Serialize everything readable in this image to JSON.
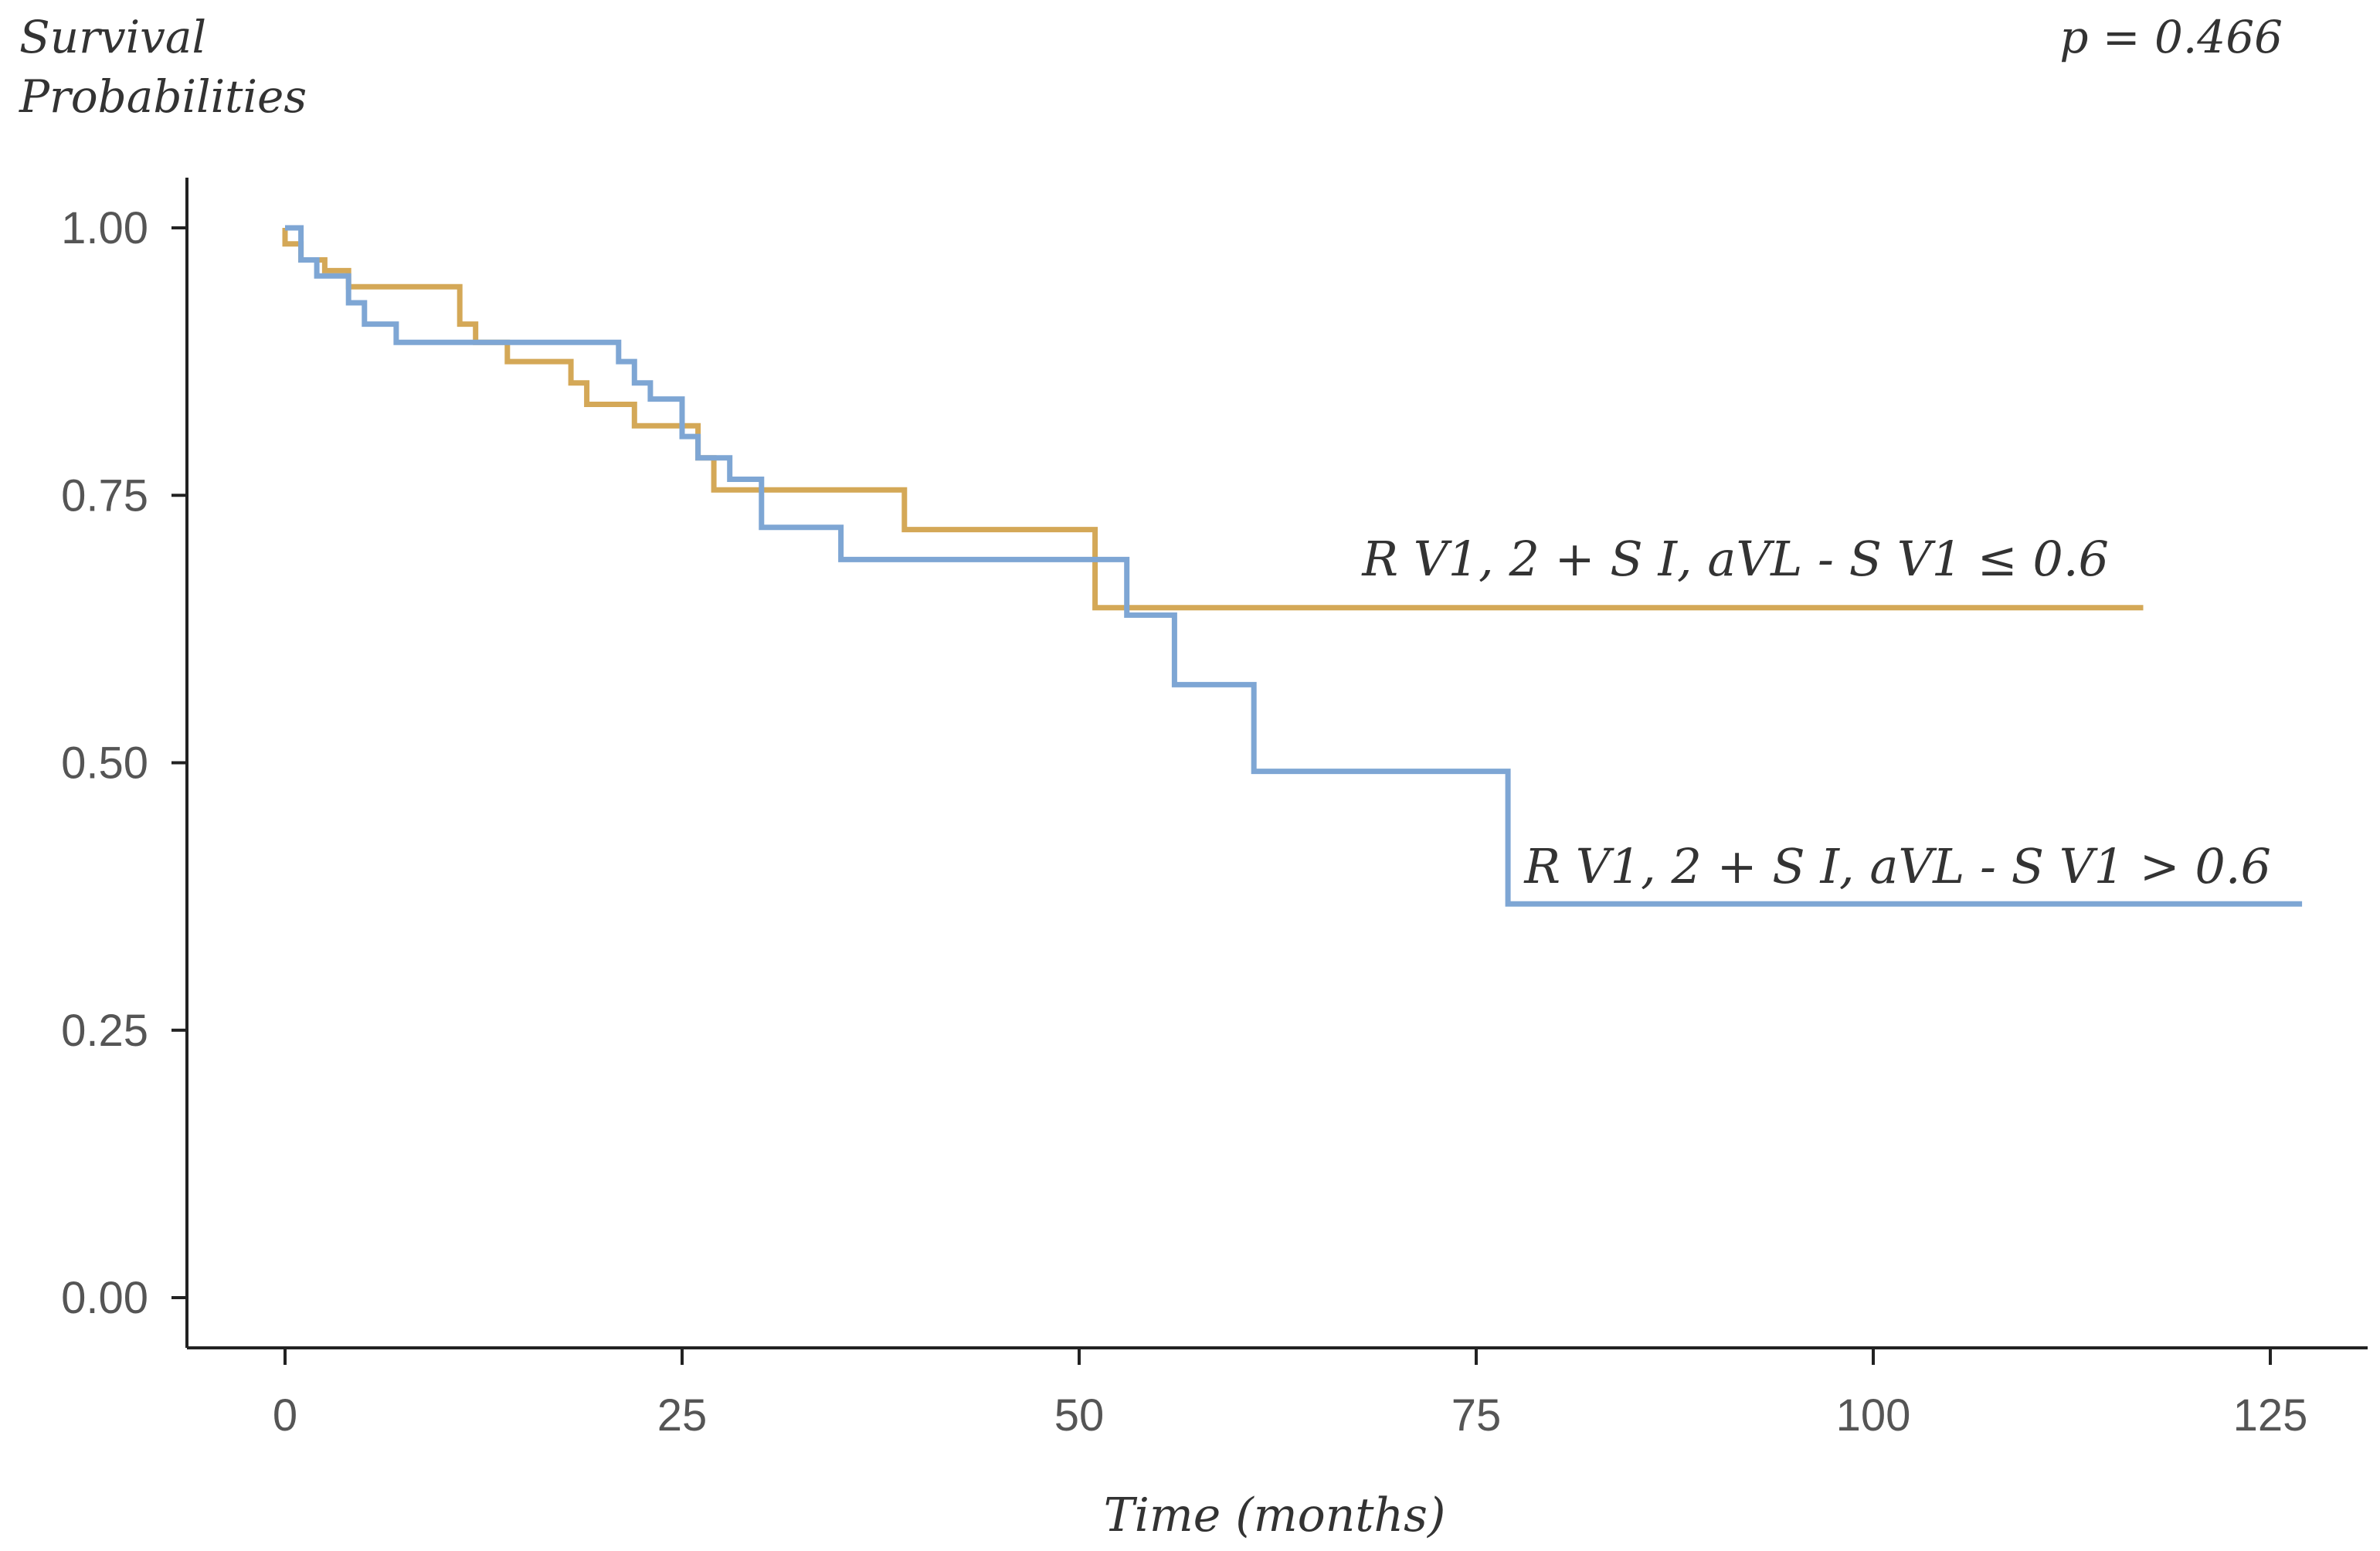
{
  "chart_data": {
    "type": "line",
    "subtype": "kaplan-meier step",
    "title": "",
    "ylabel_lines": [
      "Survival",
      "Probabilities"
    ],
    "xlabel": "Time (months)",
    "p_value_text": "p = 0.466",
    "xlim": [
      0,
      127
    ],
    "ylim": [
      0,
      1
    ],
    "x_ticks": [
      0,
      25,
      50,
      75,
      100,
      125
    ],
    "x_tick_labels": [
      "0",
      "25",
      "50",
      "75",
      "100",
      "125"
    ],
    "y_ticks": [
      0,
      0.25,
      0.5,
      0.75,
      1.0
    ],
    "y_tick_labels": [
      "0.00",
      "0.25",
      "0.50",
      "0.75",
      "1.00"
    ],
    "grid": false,
    "series": [
      {
        "name": "R V1, 2 + S I, aVL - S V1 ≤ 0.6",
        "color": "#d4a857",
        "points": [
          [
            0,
            1.0
          ],
          [
            0,
            0.985
          ],
          [
            1,
            0.985
          ],
          [
            1,
            0.97
          ],
          [
            2.5,
            0.97
          ],
          [
            2.5,
            0.96
          ],
          [
            4,
            0.96
          ],
          [
            4,
            0.945
          ],
          [
            11,
            0.945
          ],
          [
            11,
            0.91
          ],
          [
            12,
            0.91
          ],
          [
            12,
            0.893
          ],
          [
            14,
            0.893
          ],
          [
            14,
            0.875
          ],
          [
            18,
            0.875
          ],
          [
            18,
            0.855
          ],
          [
            19,
            0.855
          ],
          [
            19,
            0.835
          ],
          [
            22,
            0.835
          ],
          [
            22,
            0.815
          ],
          [
            26,
            0.815
          ],
          [
            26,
            0.785
          ],
          [
            27,
            0.785
          ],
          [
            27,
            0.755
          ],
          [
            39,
            0.755
          ],
          [
            39,
            0.718
          ],
          [
            51,
            0.718
          ],
          [
            51,
            0.645
          ],
          [
            117,
            0.645
          ]
        ],
        "end_label": "R V1, 2 + S I, aVL - S V1 ≤ 0.6"
      },
      {
        "name": "R V1, 2 + S I, aVL - S V1 > 0.6",
        "color": "#7ea6d4",
        "points": [
          [
            0,
            1.0
          ],
          [
            1,
            1.0
          ],
          [
            1,
            0.97
          ],
          [
            2,
            0.97
          ],
          [
            2,
            0.955
          ],
          [
            4,
            0.955
          ],
          [
            4,
            0.93
          ],
          [
            5,
            0.93
          ],
          [
            5,
            0.91
          ],
          [
            7,
            0.91
          ],
          [
            7,
            0.893
          ],
          [
            21,
            0.893
          ],
          [
            21,
            0.875
          ],
          [
            22,
            0.875
          ],
          [
            22,
            0.855
          ],
          [
            23,
            0.855
          ],
          [
            23,
            0.84
          ],
          [
            25,
            0.84
          ],
          [
            25,
            0.805
          ],
          [
            26,
            0.805
          ],
          [
            26,
            0.785
          ],
          [
            28,
            0.785
          ],
          [
            28,
            0.765
          ],
          [
            30,
            0.765
          ],
          [
            30,
            0.72
          ],
          [
            35,
            0.72
          ],
          [
            35,
            0.69
          ],
          [
            53,
            0.69
          ],
          [
            53,
            0.638
          ],
          [
            56,
            0.638
          ],
          [
            56,
            0.573
          ],
          [
            61,
            0.573
          ],
          [
            61,
            0.492
          ],
          [
            77,
            0.492
          ],
          [
            77,
            0.368
          ],
          [
            127,
            0.368
          ]
        ],
        "end_label": "R V1, 2 + S I, aVL - S V1 > 0.6"
      }
    ]
  }
}
